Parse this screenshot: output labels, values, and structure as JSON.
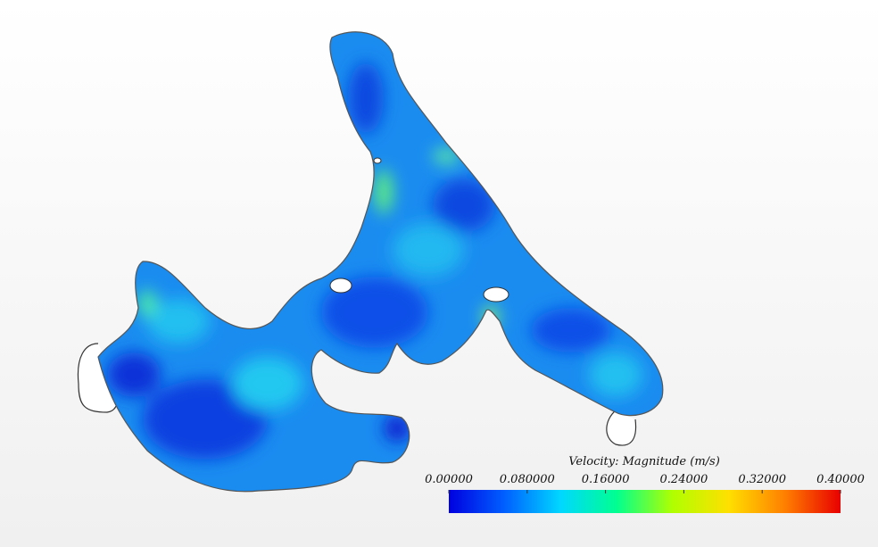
{
  "colorbar": {
    "title": "Velocity: Magnitude (m/s)",
    "range": [
      0,
      0.4
    ],
    "ticks": [
      {
        "value": 0,
        "label": "0.00000"
      },
      {
        "value": 0.08,
        "label": "0.080000"
      },
      {
        "value": 0.16,
        "label": "0.16000"
      },
      {
        "value": 0.24,
        "label": "0.24000"
      },
      {
        "value": 0.32,
        "label": "0.32000"
      },
      {
        "value": 0.4,
        "label": "0.40000"
      }
    ],
    "colors": [
      "#0000e0",
      "#0060ff",
      "#00d8ff",
      "#00ff90",
      "#b0ff00",
      "#ffe000",
      "#ff8000",
      "#e80000"
    ]
  }
}
